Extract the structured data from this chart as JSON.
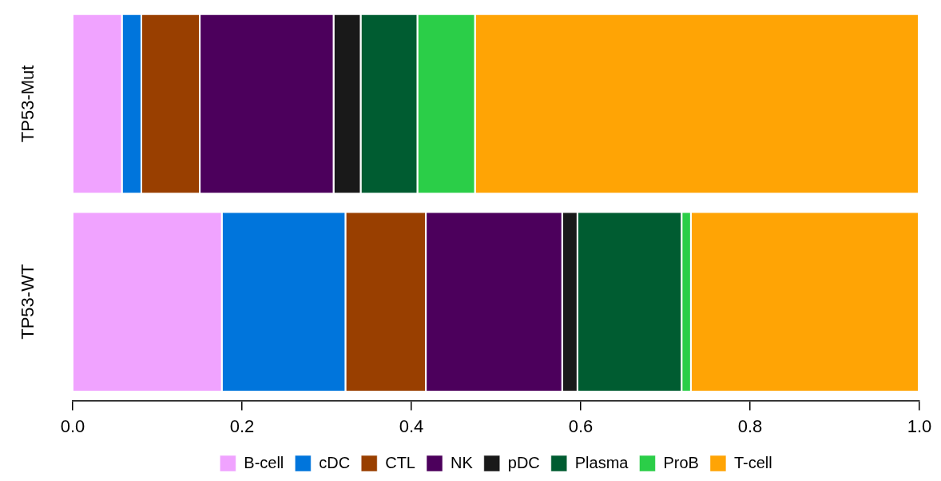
{
  "chart_data": {
    "type": "bar",
    "orientation": "horizontal",
    "stacked": true,
    "categories": [
      "TP53-Mut",
      "TP53-WT"
    ],
    "series": [
      {
        "name": "B-cell",
        "color": "#f0a3ff",
        "values": [
          0.059,
          0.177
        ]
      },
      {
        "name": "cDC",
        "color": "#0075dc",
        "values": [
          0.023,
          0.146
        ]
      },
      {
        "name": "CTL",
        "color": "#993f00",
        "values": [
          0.069,
          0.095
        ]
      },
      {
        "name": "NK",
        "color": "#4c005c",
        "values": [
          0.158,
          0.161
        ]
      },
      {
        "name": "pDC",
        "color": "#191919",
        "values": [
          0.032,
          0.018
        ]
      },
      {
        "name": "Plasma",
        "color": "#005c31",
        "values": [
          0.067,
          0.123
        ]
      },
      {
        "name": "ProB",
        "color": "#2bce48",
        "values": [
          0.068,
          0.011
        ]
      },
      {
        "name": "T-cell",
        "color": "#ffa405",
        "values": [
          0.524,
          0.269
        ]
      }
    ],
    "xlim": [
      0,
      1
    ],
    "xticks": [
      {
        "value": 0,
        "label": "0.0"
      },
      {
        "value": 0.2,
        "label": "0.2"
      },
      {
        "value": 0.4,
        "label": "0.4"
      },
      {
        "value": 0.6,
        "label": "0.6"
      },
      {
        "value": 0.8,
        "label": "0.8"
      },
      {
        "value": 1,
        "label": "1.0"
      }
    ],
    "legend": "bottom"
  }
}
